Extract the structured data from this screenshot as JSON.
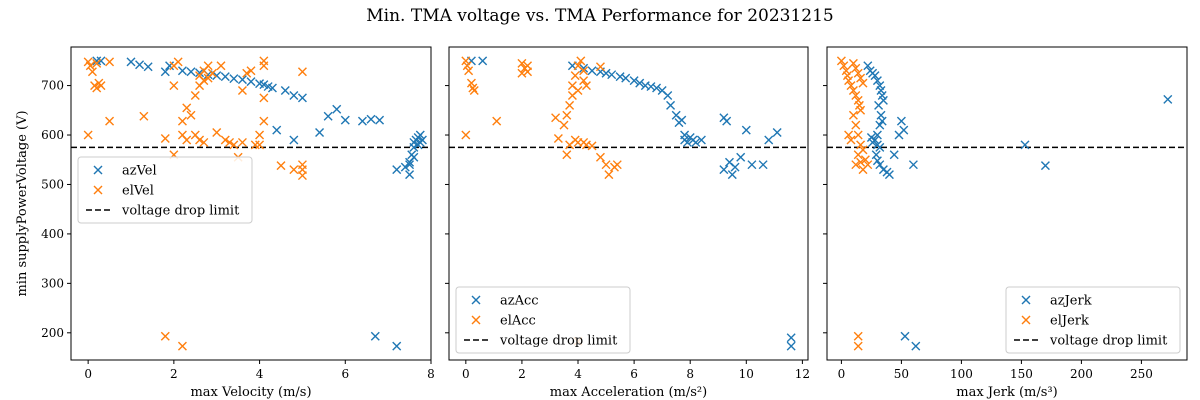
{
  "figure": {
    "title": "Min. TMA voltage vs. TMA Performance for 20231215"
  },
  "colors": {
    "blue": "#1f77b4",
    "orange": "#ff7f0e",
    "limit": "#000000"
  },
  "chart_data": [
    {
      "type": "scatter",
      "xlabel": "max Velocity (m/s)",
      "ylabel": "min supplyPowerVoltage (V)",
      "xlim": [
        -0.4,
        8.0
      ],
      "ylim": [
        145,
        778
      ],
      "xticks": [
        "0",
        "2",
        "4",
        "6",
        "8"
      ],
      "yticks": [
        "200",
        "300",
        "400",
        "500",
        "600",
        "700"
      ],
      "legend_position": "center-left",
      "limit_line": {
        "y": 575,
        "label": "voltage drop limit"
      },
      "series": [
        {
          "name": "azVel",
          "color": "#1f77b4",
          "marker": "x",
          "points": [
            [
              0.2,
              750
            ],
            [
              0.3,
              750
            ],
            [
              1.0,
              748
            ],
            [
              1.2,
              742
            ],
            [
              1.4,
              738
            ],
            [
              1.8,
              728
            ],
            [
              1.9,
              740
            ],
            [
              2.2,
              730
            ],
            [
              2.4,
              728
            ],
            [
              2.6,
              726
            ],
            [
              2.8,
              722
            ],
            [
              3.0,
              720
            ],
            [
              3.2,
              718
            ],
            [
              3.4,
              714
            ],
            [
              3.6,
              712
            ],
            [
              3.8,
              708
            ],
            [
              4.0,
              704
            ],
            [
              4.1,
              702
            ],
            [
              4.2,
              698
            ],
            [
              4.3,
              695
            ],
            [
              4.6,
              690
            ],
            [
              4.8,
              680
            ],
            [
              5.0,
              675
            ],
            [
              4.4,
              610
            ],
            [
              4.8,
              590
            ],
            [
              5.4,
              605
            ],
            [
              5.6,
              638
            ],
            [
              5.8,
              652
            ],
            [
              6.0,
              630
            ],
            [
              6.4,
              628
            ],
            [
              6.6,
              632
            ],
            [
              6.8,
              630
            ],
            [
              6.7,
              193
            ],
            [
              7.2,
              173
            ],
            [
              7.2,
              530
            ],
            [
              7.4,
              535
            ],
            [
              7.5,
              520
            ],
            [
              7.5,
              545
            ],
            [
              7.55,
              560
            ],
            [
              7.6,
              575
            ],
            [
              7.6,
              585
            ],
            [
              7.65,
              590
            ],
            [
              7.7,
              595
            ],
            [
              7.7,
              580
            ],
            [
              7.75,
              600
            ],
            [
              7.75,
              585
            ],
            [
              7.8,
              590
            ],
            [
              7.6,
              555
            ],
            [
              7.5,
              540
            ]
          ]
        },
        {
          "name": "elVel",
          "color": "#ff7f0e",
          "marker": "x",
          "points": [
            [
              0.0,
              748
            ],
            [
              0.05,
              740
            ],
            [
              0.1,
              728
            ],
            [
              0.2,
              745
            ],
            [
              0.3,
              700
            ],
            [
              0.25,
              705
            ],
            [
              0.2,
              695
            ],
            [
              0.15,
              700
            ],
            [
              0.5,
              748
            ],
            [
              0.5,
              628
            ],
            [
              0.0,
              600
            ],
            [
              1.3,
              638
            ],
            [
              1.8,
              593
            ],
            [
              2.0,
              560
            ],
            [
              2.0,
              740
            ],
            [
              2.1,
              748
            ],
            [
              2.0,
              700
            ],
            [
              2.2,
              600
            ],
            [
              2.2,
              628
            ],
            [
              2.3,
              655
            ],
            [
              2.4,
              640
            ],
            [
              2.5,
              680
            ],
            [
              2.6,
              700
            ],
            [
              2.6,
              720
            ],
            [
              2.7,
              710
            ],
            [
              2.7,
              730
            ],
            [
              2.8,
              740
            ],
            [
              2.8,
              715
            ],
            [
              2.9,
              725
            ],
            [
              2.5,
              600
            ],
            [
              2.3,
              590
            ],
            [
              2.6,
              590
            ],
            [
              2.7,
              585
            ],
            [
              3.0,
              605
            ],
            [
              3.1,
              740
            ],
            [
              3.2,
              590
            ],
            [
              3.3,
              585
            ],
            [
              3.4,
              580
            ],
            [
              3.5,
              555
            ],
            [
              3.6,
              690
            ],
            [
              3.6,
              585
            ],
            [
              3.7,
              725
            ],
            [
              3.8,
              730
            ],
            [
              3.9,
              580
            ],
            [
              4.0,
              580
            ],
            [
              4.0,
              600
            ],
            [
              4.1,
              740
            ],
            [
              4.1,
              750
            ],
            [
              4.1,
              628
            ],
            [
              4.1,
              675
            ],
            [
              4.5,
              538
            ],
            [
              4.8,
              530
            ],
            [
              5.0,
              540
            ],
            [
              5.0,
              530
            ],
            [
              5.0,
              518
            ],
            [
              5.0,
              728
            ],
            [
              1.8,
              193
            ],
            [
              2.2,
              173
            ]
          ]
        }
      ]
    },
    {
      "type": "scatter",
      "xlabel": "max Acceleration (m/s²)",
      "ylabel": "",
      "xlim": [
        -0.6,
        12.2
      ],
      "ylim": [
        145,
        778
      ],
      "xticks": [
        "0",
        "2",
        "4",
        "6",
        "8",
        "10",
        "12"
      ],
      "yticks": [],
      "legend_position": "lower-left",
      "limit_line": {
        "y": 575,
        "label": "voltage drop limit"
      },
      "series": [
        {
          "name": "azAcc",
          "color": "#1f77b4",
          "marker": "x",
          "points": [
            [
              0.2,
              750
            ],
            [
              0.6,
              750
            ],
            [
              3.8,
              740
            ],
            [
              4.2,
              735
            ],
            [
              4.5,
              730
            ],
            [
              4.8,
              728
            ],
            [
              5.0,
              725
            ],
            [
              5.2,
              722
            ],
            [
              5.5,
              718
            ],
            [
              5.7,
              715
            ],
            [
              6.0,
              710
            ],
            [
              6.2,
              705
            ],
            [
              6.4,
              700
            ],
            [
              6.6,
              698
            ],
            [
              6.8,
              695
            ],
            [
              7.0,
              690
            ],
            [
              7.2,
              680
            ],
            [
              7.3,
              660
            ],
            [
              7.5,
              640
            ],
            [
              7.6,
              625
            ],
            [
              7.7,
              630
            ],
            [
              7.8,
              600
            ],
            [
              7.8,
              590
            ],
            [
              7.9,
              585
            ],
            [
              8.0,
              595
            ],
            [
              8.1,
              590
            ],
            [
              8.2,
              585
            ],
            [
              8.4,
              590
            ],
            [
              9.2,
              635
            ],
            [
              9.3,
              628
            ],
            [
              9.2,
              530
            ],
            [
              9.4,
              545
            ],
            [
              9.5,
              520
            ],
            [
              9.6,
              535
            ],
            [
              9.8,
              555
            ],
            [
              10.0,
              610
            ],
            [
              10.2,
              540
            ],
            [
              10.6,
              540
            ],
            [
              10.8,
              590
            ],
            [
              11.1,
              605
            ],
            [
              11.6,
              190
            ],
            [
              11.6,
              173
            ]
          ]
        },
        {
          "name": "elAcc",
          "color": "#ff7f0e",
          "marker": "x",
          "points": [
            [
              0.0,
              750
            ],
            [
              0.05,
              740
            ],
            [
              0.1,
              730
            ],
            [
              0.2,
              705
            ],
            [
              0.25,
              695
            ],
            [
              0.3,
              690
            ],
            [
              0.0,
              600
            ],
            [
              1.1,
              628
            ],
            [
              2.0,
              745
            ],
            [
              2.1,
              735
            ],
            [
              2.2,
              728
            ],
            [
              2.0,
              725
            ],
            [
              2.2,
              740
            ],
            [
              3.2,
              635
            ],
            [
              3.3,
              593
            ],
            [
              3.5,
              620
            ],
            [
              3.6,
              640
            ],
            [
              3.7,
              660
            ],
            [
              3.8,
              680
            ],
            [
              3.8,
              700
            ],
            [
              3.9,
              720
            ],
            [
              4.0,
              740
            ],
            [
              4.1,
              750
            ],
            [
              4.2,
              730
            ],
            [
              4.2,
              710
            ],
            [
              4.0,
              690
            ],
            [
              4.3,
              700
            ],
            [
              3.6,
              560
            ],
            [
              3.7,
              580
            ],
            [
              3.9,
              590
            ],
            [
              4.0,
              585
            ],
            [
              4.2,
              585
            ],
            [
              4.3,
              580
            ],
            [
              4.5,
              578
            ],
            [
              4.8,
              555
            ],
            [
              5.0,
              540
            ],
            [
              5.1,
              520
            ],
            [
              5.3,
              535
            ],
            [
              5.4,
              540
            ],
            [
              4.8,
              738
            ],
            [
              4.0,
              183
            ]
          ]
        }
      ]
    },
    {
      "type": "scatter",
      "xlabel": "max Jerk (m/s³)",
      "ylabel": "",
      "xlim": [
        -12,
        288
      ],
      "ylim": [
        145,
        778
      ],
      "xticks": [
        "0",
        "50",
        "100",
        "150",
        "200",
        "250"
      ],
      "yticks": [],
      "legend_position": "lower-right",
      "limit_line": {
        "y": 575,
        "label": "voltage drop limit"
      },
      "series": [
        {
          "name": "azJerk",
          "color": "#1f77b4",
          "marker": "x",
          "points": [
            [
              22,
              740
            ],
            [
              24,
              730
            ],
            [
              26,
              725
            ],
            [
              28,
              720
            ],
            [
              30,
              710
            ],
            [
              32,
              700
            ],
            [
              33,
              690
            ],
            [
              34,
              680
            ],
            [
              35,
              670
            ],
            [
              31,
              660
            ],
            [
              33,
              640
            ],
            [
              32,
              620
            ],
            [
              34,
              628
            ],
            [
              30,
              600
            ],
            [
              25,
              595
            ],
            [
              28,
              590
            ],
            [
              30,
              580
            ],
            [
              32,
              575
            ],
            [
              26,
              585
            ],
            [
              29,
              560
            ],
            [
              30,
              548
            ],
            [
              32,
              540
            ],
            [
              35,
              530
            ],
            [
              38,
              525
            ],
            [
              40,
              520
            ],
            [
              44,
              560
            ],
            [
              48,
              600
            ],
            [
              50,
              628
            ],
            [
              52,
              610
            ],
            [
              60,
              540
            ],
            [
              53,
              193
            ],
            [
              62,
              173
            ],
            [
              153,
              580
            ],
            [
              170,
              538
            ],
            [
              272,
              672
            ]
          ]
        },
        {
          "name": "elJerk",
          "color": "#ff7f0e",
          "marker": "x",
          "points": [
            [
              0,
              750
            ],
            [
              2,
              740
            ],
            [
              4,
              730
            ],
            [
              5,
              720
            ],
            [
              6,
              710
            ],
            [
              8,
              700
            ],
            [
              10,
              690
            ],
            [
              12,
              680
            ],
            [
              14,
              670
            ],
            [
              15,
              660
            ],
            [
              16,
              650
            ],
            [
              10,
              640
            ],
            [
              12,
              620
            ],
            [
              14,
              600
            ],
            [
              16,
              580
            ],
            [
              18,
              570
            ],
            [
              14,
              560
            ],
            [
              16,
              545
            ],
            [
              18,
              530
            ],
            [
              12,
              540
            ],
            [
              20,
              550
            ],
            [
              22,
              540
            ],
            [
              6,
              600
            ],
            [
              8,
              590
            ],
            [
              10,
              745
            ],
            [
              12,
              735
            ],
            [
              14,
              725
            ],
            [
              16,
              715
            ],
            [
              18,
              705
            ],
            [
              14,
              193
            ],
            [
              14,
              173
            ]
          ]
        }
      ]
    }
  ]
}
